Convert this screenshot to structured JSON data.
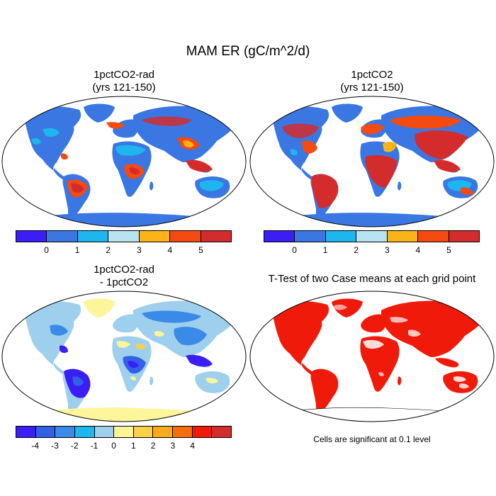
{
  "main_title": "MAM ER (gC/m^2/d)",
  "panels": [
    {
      "title_line1": "1pctCO2-rad",
      "title_line2": "(yrs 121-150)"
    },
    {
      "title_line1": "1pctCO2",
      "title_line2": "(yrs 121-150)"
    },
    {
      "title_line1": "1pctCO2-rad",
      "title_line2": "- 1pctCO2"
    },
    {
      "title_line1": "T-Test of two Case means at each grid point",
      "title_line2": ""
    }
  ],
  "colorbar_abs": {
    "colors": [
      "#3b1ef5",
      "#3a77e3",
      "#1db6ef",
      "#b8e3f0",
      "#fbb418",
      "#f54a10",
      "#d42c2c"
    ],
    "ticks": [
      "0",
      "1",
      "2",
      "3",
      "4",
      "5"
    ]
  },
  "colorbar_diff": {
    "colors": [
      "#3b1ef5",
      "#3260e6",
      "#3a8ae7",
      "#1db6ef",
      "#9ecfec",
      "#fdf59a",
      "#fcd04a",
      "#fbaa1a",
      "#f56d0d",
      "#f01a0a",
      "#d42c2c"
    ],
    "ticks": [
      "-4",
      "-3",
      "-2",
      "-1",
      "0",
      "1",
      "2",
      "3",
      "4"
    ]
  },
  "significance_note": "Cells are significant at 0.1 level"
}
